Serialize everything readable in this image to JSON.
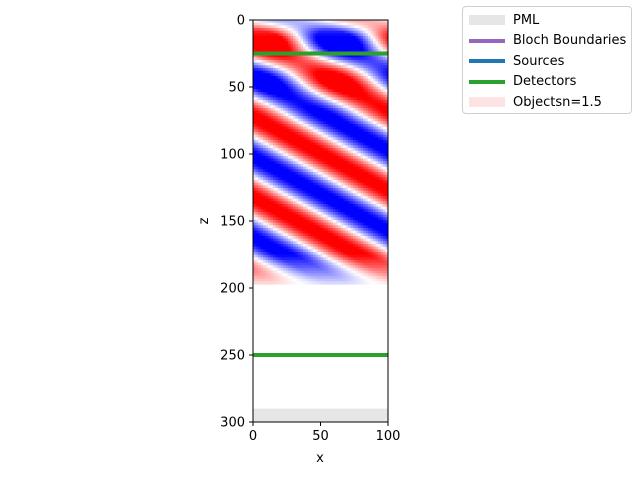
{
  "chart_data": {
    "type": "heatmap",
    "title": "",
    "xlabel": "x",
    "ylabel": "z",
    "xlim": [
      0,
      100
    ],
    "ylim": [
      300,
      0
    ],
    "x_ticks": [
      0,
      50,
      100
    ],
    "y_ticks": [
      0,
      50,
      100,
      150,
      200,
      250,
      300
    ],
    "legend_position": "outside-top-right",
    "field_colormap": [
      "#0000ff",
      "#ffffff",
      "#ff0000"
    ],
    "field_extent_z": [
      0,
      197
    ],
    "legend": [
      {
        "label": "PML",
        "kind": "patch",
        "color": "#e6e6e6"
      },
      {
        "label": "Bloch Boundaries",
        "kind": "line",
        "color": "#9467bd"
      },
      {
        "label": "Sources",
        "kind": "line",
        "color": "#1f77b4"
      },
      {
        "label": "Detectors",
        "kind": "line",
        "color": "#2ca02c"
      },
      {
        "label": "Objectsn=1.5",
        "kind": "patch",
        "color": "#fde3e3"
      }
    ],
    "pml_regions": [
      {
        "z_from": 290,
        "z_to": 300
      }
    ],
    "detectors": [
      {
        "z": 25
      },
      {
        "z": 250
      }
    ]
  }
}
